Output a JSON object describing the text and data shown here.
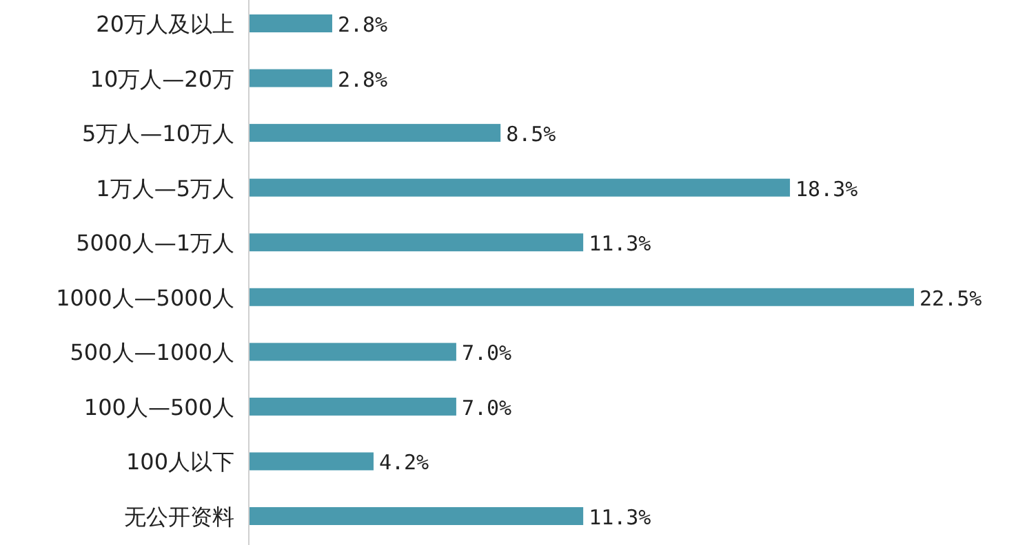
{
  "chart_data": {
    "type": "bar",
    "orientation": "horizontal",
    "categories": [
      "20万人及以上",
      "10万人—20万",
      "5万人—10万人",
      "1万人—5万人",
      "5000人—1万人",
      "1000人—5000人",
      "500人—1000人",
      "100人—500人",
      "100人以下",
      "无公开资料"
    ],
    "values": [
      2.8,
      2.8,
      8.5,
      18.3,
      11.3,
      22.5,
      7.0,
      7.0,
      4.2,
      11.3
    ],
    "value_labels": [
      "2.8%",
      "2.8%",
      "8.5%",
      "18.3%",
      "11.3%",
      "22.5%",
      "7.0%",
      "7.0%",
      "4.2%",
      "11.3%"
    ],
    "color": "#4a9aae"
  }
}
